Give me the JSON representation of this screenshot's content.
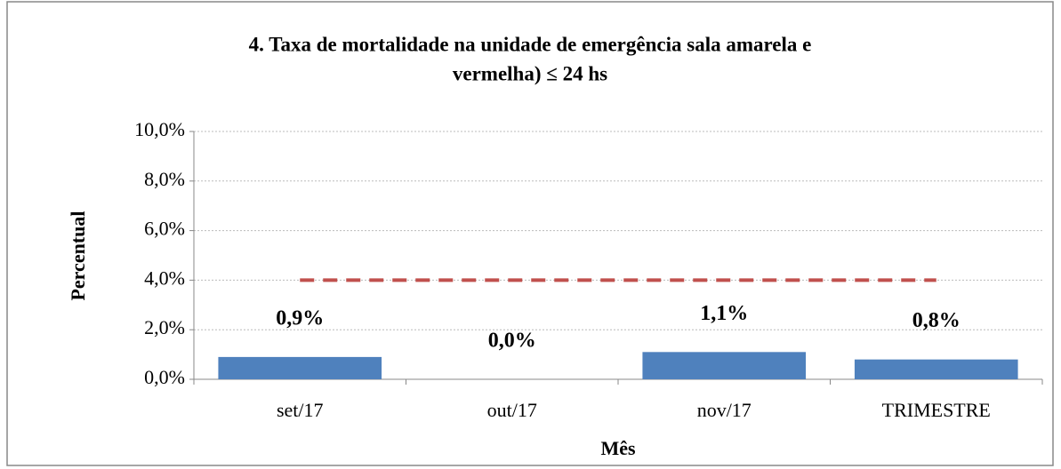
{
  "chart_data": {
    "type": "bar",
    "title": [
      "4. Taxa de mortalidade  na unidade  de emergência sala amarela e",
      "vermelha) ≤ 24 hs"
    ],
    "x_label": "Mês",
    "y_label": "Percentual",
    "categories": [
      "set/17",
      "out/17",
      "nov/17",
      "TRIMESTRE"
    ],
    "values": [
      0.9,
      0.0,
      1.1,
      0.8
    ],
    "value_labels": [
      "0,9%",
      "0,0%",
      "1,1%",
      "0,8%"
    ],
    "color": "#4f81bd",
    "target": {
      "values": [
        4,
        4,
        4,
        4
      ],
      "color": "#c0504d"
    },
    "ylim": [
      0,
      10
    ],
    "yticks": [
      {
        "value": 0,
        "label": "0,0%"
      },
      {
        "value": 2,
        "label": "2,0%"
      },
      {
        "value": 4,
        "label": "4,0%"
      },
      {
        "value": 6,
        "label": "6,0%"
      },
      {
        "value": 8,
        "label": "8,0%"
      },
      {
        "value": 10,
        "label": "10,0%"
      }
    ],
    "grid": true
  }
}
